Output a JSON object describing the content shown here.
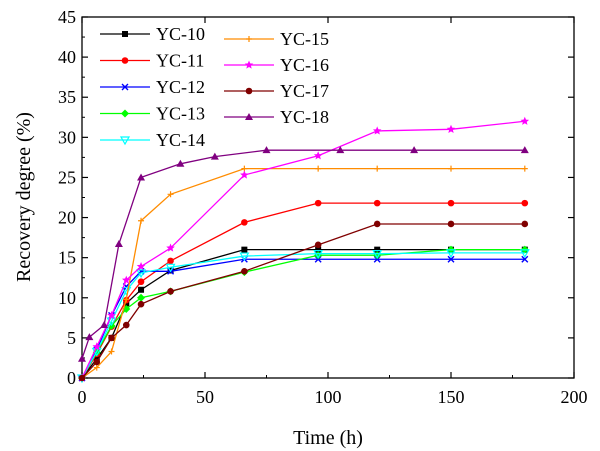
{
  "chart_data": {
    "type": "line",
    "title": "",
    "xlabel": "Time (h)",
    "ylabel": "Recovery degree (%)",
    "xlim": [
      0,
      200
    ],
    "ylim": [
      0,
      45
    ],
    "x_ticks": [
      "0",
      "50",
      "100",
      "150",
      "200"
    ],
    "y_ticks": [
      "0",
      "5",
      "10",
      "15",
      "20",
      "25",
      "30",
      "35",
      "40",
      "45"
    ],
    "grid": false,
    "legend_position": "top-left",
    "series": [
      {
        "name": "YC-10",
        "color": "#000000",
        "marker": "square",
        "x": [
          0,
          6,
          12,
          18,
          24,
          36,
          66,
          96,
          120,
          150,
          180
        ],
        "y": [
          0,
          2.4,
          5.0,
          9.3,
          11.0,
          13.4,
          16.0,
          16.0,
          16.0,
          16.0,
          16.0
        ]
      },
      {
        "name": "YC-11",
        "color": "#ff0000",
        "marker": "circle",
        "x": [
          0,
          6,
          12,
          18,
          24,
          36,
          66,
          96,
          120,
          150,
          180
        ],
        "y": [
          0,
          3.0,
          6.4,
          9.7,
          12.0,
          14.6,
          19.4,
          21.8,
          21.8,
          21.8,
          21.8
        ]
      },
      {
        "name": "YC-12",
        "color": "#0000ff",
        "marker": "x",
        "x": [
          0,
          6,
          12,
          18,
          24,
          36,
          66,
          96,
          120,
          150,
          180
        ],
        "y": [
          0,
          3.5,
          7.8,
          11.4,
          13.3,
          13.3,
          14.8,
          14.8,
          14.8,
          14.8,
          14.8
        ]
      },
      {
        "name": "YC-13",
        "color": "#00ff00",
        "marker": "diamond",
        "x": [
          0,
          6,
          12,
          18,
          24,
          36,
          66,
          96,
          120,
          150,
          180
        ],
        "y": [
          0,
          3.2,
          6.5,
          8.6,
          10.0,
          10.8,
          13.2,
          15.3,
          15.3,
          16.0,
          16.0
        ]
      },
      {
        "name": "YC-14",
        "color": "#00ffff",
        "marker": "triangle-down",
        "x": [
          0,
          6,
          12,
          18,
          24,
          36,
          66,
          96,
          120,
          150,
          180
        ],
        "y": [
          0,
          3.3,
          7.1,
          10.9,
          13.1,
          13.8,
          15.2,
          15.5,
          15.5,
          15.6,
          15.6
        ]
      },
      {
        "name": "YC-15",
        "color": "#ff8c00",
        "marker": "plus",
        "x": [
          0,
          6,
          12,
          18,
          24,
          36,
          66,
          96,
          120,
          150,
          180
        ],
        "y": [
          0,
          1.3,
          3.3,
          9.8,
          19.6,
          22.9,
          26.1,
          26.1,
          26.1,
          26.1,
          26.1
        ]
      },
      {
        "name": "YC-16",
        "color": "#ff00ff",
        "marker": "star",
        "x": [
          0,
          6,
          12,
          18,
          24,
          36,
          66,
          96,
          120,
          150,
          180
        ],
        "y": [
          0,
          3.9,
          7.8,
          12.2,
          13.9,
          16.2,
          25.3,
          27.7,
          30.8,
          31.0,
          32.0
        ]
      },
      {
        "name": "YC-17",
        "color": "#800000",
        "marker": "circle",
        "x": [
          0,
          6,
          12,
          18,
          24,
          36,
          66,
          96,
          120,
          150,
          180
        ],
        "y": [
          0,
          2.0,
          5.0,
          6.6,
          9.2,
          10.8,
          13.3,
          16.6,
          19.2,
          19.2,
          19.2
        ]
      },
      {
        "name": "YC-18",
        "color": "#800080",
        "marker": "triangle",
        "x": [
          0,
          3,
          9,
          15,
          24,
          40,
          54,
          75,
          105,
          135,
          180
        ],
        "y": [
          2.4,
          5.1,
          6.6,
          16.7,
          25.0,
          26.7,
          27.6,
          28.4,
          28.4,
          28.4,
          28.4
        ]
      }
    ]
  }
}
